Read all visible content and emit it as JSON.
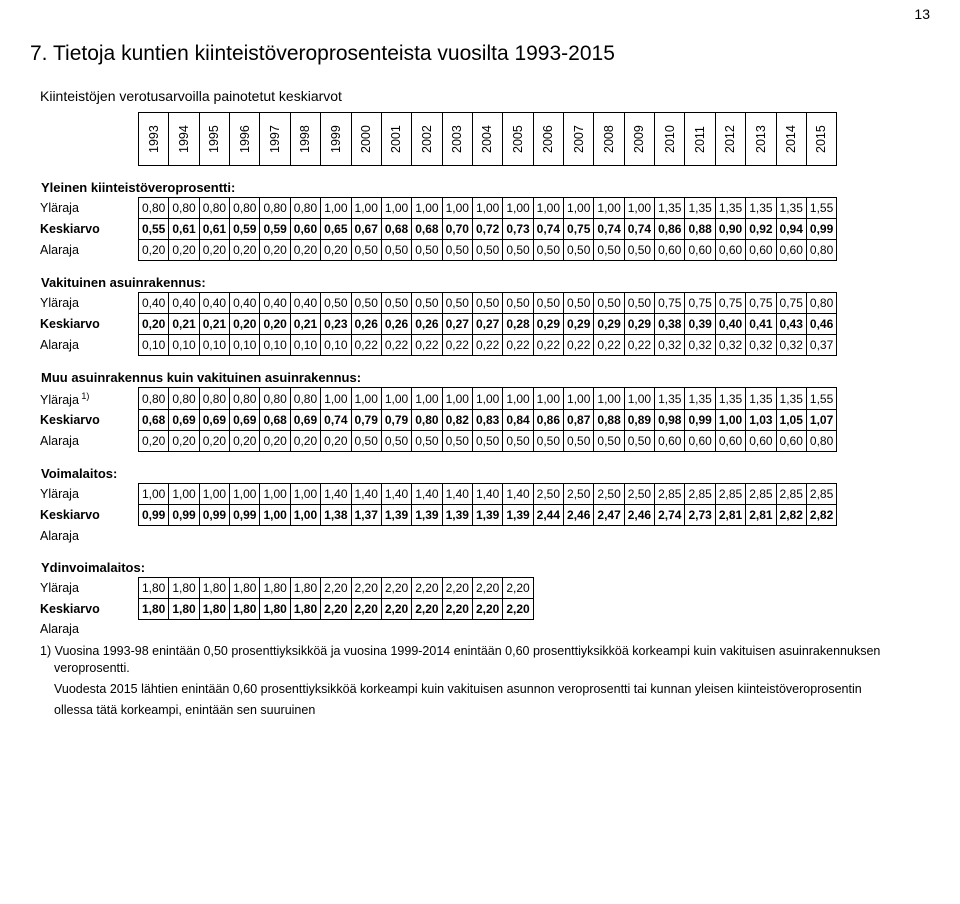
{
  "page": {
    "number": "13",
    "section_number": "7.",
    "section_title": " Tietoja kuntien kiinteistöveroprosenteista vuosilta 1993-2015",
    "subtitle": "Kiinteistöjen verotusarvoilla painotetut keskiarvot"
  },
  "table": {
    "years": [
      "1993",
      "1994",
      "1995",
      "1996",
      "1997",
      "1998",
      "1999",
      "2000",
      "2001",
      "2002",
      "2003",
      "2004",
      "2005",
      "2006",
      "2007",
      "2008",
      "2009",
      "2010",
      "2011",
      "2012",
      "2013",
      "2014",
      "2015"
    ],
    "sections": [
      {
        "heading": "Yleinen kiinteistöveroprosentti:",
        "rows": [
          {
            "label": "Yläraja",
            "values": [
              "0,80",
              "0,80",
              "0,80",
              "0,80",
              "0,80",
              "0,80",
              "1,00",
              "1,00",
              "1,00",
              "1,00",
              "1,00",
              "1,00",
              "1,00",
              "1,00",
              "1,00",
              "1,00",
              "1,00",
              "1,35",
              "1,35",
              "1,35",
              "1,35",
              "1,35",
              "1,55"
            ]
          },
          {
            "label": "Keskiarvo",
            "bold": true,
            "values": [
              "0,55",
              "0,61",
              "0,61",
              "0,59",
              "0,59",
              "0,60",
              "0,65",
              "0,67",
              "0,68",
              "0,68",
              "0,70",
              "0,72",
              "0,73",
              "0,74",
              "0,75",
              "0,74",
              "0,74",
              "0,86",
              "0,88",
              "0,90",
              "0,92",
              "0,94",
              "0,99"
            ]
          },
          {
            "label": "Alaraja",
            "values": [
              "0,20",
              "0,20",
              "0,20",
              "0,20",
              "0,20",
              "0,20",
              "0,20",
              "0,50",
              "0,50",
              "0,50",
              "0,50",
              "0,50",
              "0,50",
              "0,50",
              "0,50",
              "0,50",
              "0,50",
              "0,60",
              "0,60",
              "0,60",
              "0,60",
              "0,60",
              "0,80"
            ]
          }
        ]
      },
      {
        "heading": "Vakituinen asuinrakennus:",
        "rows": [
          {
            "label": "Yläraja",
            "values": [
              "0,40",
              "0,40",
              "0,40",
              "0,40",
              "0,40",
              "0,40",
              "0,50",
              "0,50",
              "0,50",
              "0,50",
              "0,50",
              "0,50",
              "0,50",
              "0,50",
              "0,50",
              "0,50",
              "0,50",
              "0,75",
              "0,75",
              "0,75",
              "0,75",
              "0,75",
              "0,80"
            ]
          },
          {
            "label": "Keskiarvo",
            "bold": true,
            "values": [
              "0,20",
              "0,21",
              "0,21",
              "0,20",
              "0,20",
              "0,21",
              "0,23",
              "0,26",
              "0,26",
              "0,26",
              "0,27",
              "0,27",
              "0,28",
              "0,29",
              "0,29",
              "0,29",
              "0,29",
              "0,38",
              "0,39",
              "0,40",
              "0,41",
              "0,43",
              "0,46"
            ]
          },
          {
            "label": "Alaraja",
            "values": [
              "0,10",
              "0,10",
              "0,10",
              "0,10",
              "0,10",
              "0,10",
              "0,10",
              "0,22",
              "0,22",
              "0,22",
              "0,22",
              "0,22",
              "0,22",
              "0,22",
              "0,22",
              "0,22",
              "0,22",
              "0,32",
              "0,32",
              "0,32",
              "0,32",
              "0,32",
              "0,37"
            ]
          }
        ]
      },
      {
        "heading": "Muu asuinrakennus kuin vakituinen asuinrakennus:",
        "rows": [
          {
            "label": "Yläraja",
            "sup": "1)",
            "values": [
              "0,80",
              "0,80",
              "0,80",
              "0,80",
              "0,80",
              "0,80",
              "1,00",
              "1,00",
              "1,00",
              "1,00",
              "1,00",
              "1,00",
              "1,00",
              "1,00",
              "1,00",
              "1,00",
              "1,00",
              "1,35",
              "1,35",
              "1,35",
              "1,35",
              "1,35",
              "1,55"
            ]
          },
          {
            "label": "Keskiarvo",
            "bold": true,
            "values": [
              "0,68",
              "0,69",
              "0,69",
              "0,69",
              "0,68",
              "0,69",
              "0,74",
              "0,79",
              "0,79",
              "0,80",
              "0,82",
              "0,83",
              "0,84",
              "0,86",
              "0,87",
              "0,88",
              "0,89",
              "0,98",
              "0,99",
              "1,00",
              "1,03",
              "1,05",
              "1,07"
            ]
          },
          {
            "label": "Alaraja",
            "values": [
              "0,20",
              "0,20",
              "0,20",
              "0,20",
              "0,20",
              "0,20",
              "0,20",
              "0,50",
              "0,50",
              "0,50",
              "0,50",
              "0,50",
              "0,50",
              "0,50",
              "0,50",
              "0,50",
              "0,50",
              "0,60",
              "0,60",
              "0,60",
              "0,60",
              "0,60",
              "0,80"
            ]
          }
        ]
      },
      {
        "heading": "Voimalaitos:",
        "rows": [
          {
            "label": "Yläraja",
            "values": [
              "1,00",
              "1,00",
              "1,00",
              "1,00",
              "1,00",
              "1,00",
              "1,40",
              "1,40",
              "1,40",
              "1,40",
              "1,40",
              "1,40",
              "1,40",
              "2,50",
              "2,50",
              "2,50",
              "2,50",
              "2,85",
              "2,85",
              "2,85",
              "2,85",
              "2,85",
              "2,85"
            ]
          },
          {
            "label": "Keskiarvo",
            "bold": true,
            "values": [
              "0,99",
              "0,99",
              "0,99",
              "0,99",
              "1,00",
              "1,00",
              "1,38",
              "1,37",
              "1,39",
              "1,39",
              "1,39",
              "1,39",
              "1,39",
              "2,44",
              "2,46",
              "2,47",
              "2,46",
              "2,74",
              "2,73",
              "2,81",
              "2,81",
              "2,82",
              "2,82"
            ]
          },
          {
            "label": "Alaraja",
            "values": []
          }
        ]
      },
      {
        "heading": "Ydinvoimalaitos:",
        "rows": [
          {
            "label": "Yläraja",
            "values": [
              "1,80",
              "1,80",
              "1,80",
              "1,80",
              "1,80",
              "1,80",
              "2,20",
              "2,20",
              "2,20",
              "2,20",
              "2,20",
              "2,20",
              "2,20"
            ]
          },
          {
            "label": "Keskiarvo",
            "bold": true,
            "values": [
              "1,80",
              "1,80",
              "1,80",
              "1,80",
              "1,80",
              "1,80",
              "2,20",
              "2,20",
              "2,20",
              "2,20",
              "2,20",
              "2,20",
              "2,20"
            ]
          },
          {
            "label": "Alaraja",
            "values": []
          }
        ]
      }
    ],
    "cell_font_size": 12,
    "border_color": "#000000",
    "background_color": "#ffffff"
  },
  "footnotes": [
    "1) Vuosina 1993-98 enintään 0,50 prosenttiyksikköä ja vuosina 1999-2014 enintään 0,60 prosenttiyksikköä korkeampi kuin vakituisen asuinrakennuksen veroprosentti.",
    "Vuodesta 2015 lähtien enintään 0,60 prosenttiyksikköä korkeampi kuin vakituisen asunnon veroprosentti tai kunnan yleisen kiinteistöveroprosentin",
    "ollessa tätä korkeampi, enintään sen suuruinen"
  ]
}
